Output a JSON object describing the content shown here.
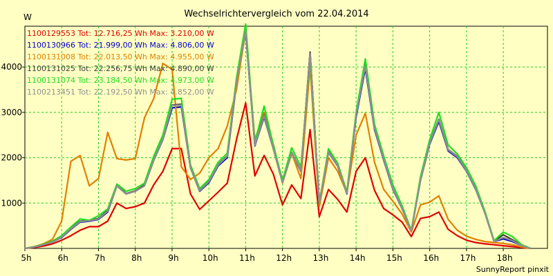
{
  "chart_data": {
    "type": "line",
    "title": "Wechselrichtervergleich vom 22.04.2014",
    "ylabel": "W",
    "xlabel": "",
    "credit": "SunnyReport pinxit",
    "xlim": [
      5,
      19.2
    ],
    "ylim": [
      0,
      4900
    ],
    "grid": true,
    "legend_position": "top-left",
    "x_ticks": [
      {
        "value": 5,
        "label": "5h"
      },
      {
        "value": 6,
        "label": "6h"
      },
      {
        "value": 7,
        "label": "7h"
      },
      {
        "value": 8,
        "label": "8h"
      },
      {
        "value": 9,
        "label": "9h"
      },
      {
        "value": 10,
        "label": "10h"
      },
      {
        "value": 11,
        "label": "11h"
      },
      {
        "value": 12,
        "label": "12h"
      },
      {
        "value": 13,
        "label": "13h"
      },
      {
        "value": 14,
        "label": "14h"
      },
      {
        "value": 15,
        "label": "15h"
      },
      {
        "value": 16,
        "label": "16h"
      },
      {
        "value": 17,
        "label": "17h"
      },
      {
        "value": 18,
        "label": "18h"
      }
    ],
    "y_ticks": [
      {
        "value": 1000,
        "label": "1000"
      },
      {
        "value": 2000,
        "label": "2000"
      },
      {
        "value": 3000,
        "label": "3000"
      },
      {
        "value": 4000,
        "label": "4000"
      }
    ],
    "x": [
      5.0,
      5.25,
      5.5,
      5.75,
      6.0,
      6.25,
      6.5,
      6.75,
      7.0,
      7.25,
      7.5,
      7.75,
      8.0,
      8.25,
      8.5,
      8.75,
      9.0,
      9.25,
      9.5,
      9.75,
      10.0,
      10.25,
      10.5,
      10.75,
      11.0,
      11.25,
      11.5,
      11.75,
      12.0,
      12.25,
      12.5,
      12.75,
      13.0,
      13.25,
      13.5,
      13.75,
      14.0,
      14.25,
      14.5,
      14.75,
      15.0,
      15.25,
      15.5,
      15.75,
      16.0,
      16.25,
      16.5,
      16.75,
      17.0,
      17.25,
      17.5,
      17.75,
      18.0,
      18.25,
      18.5,
      18.75
    ],
    "series": [
      {
        "name": "1100129553 Tot: 12.716,25 Wh Max: 3.210,00 W",
        "color": "#e00000",
        "values": [
          0,
          20,
          50,
          100,
          180,
          280,
          400,
          480,
          480,
          600,
          1000,
          880,
          920,
          1000,
          1400,
          1700,
          2200,
          2200,
          1200,
          860,
          1050,
          1240,
          1440,
          2400,
          3210,
          1600,
          2050,
          1640,
          960,
          1400,
          1100,
          2620,
          700,
          1300,
          1080,
          800,
          1700,
          2000,
          1280,
          880,
          740,
          580,
          260,
          660,
          700,
          800,
          420,
          280,
          180,
          130,
          100,
          80,
          60,
          40,
          20,
          0
        ]
      },
      {
        "name": "1100130966 Tot: 21.999,00 Wh Max: 4.806,00 W",
        "color": "#0000cc",
        "values": [
          0,
          30,
          80,
          140,
          240,
          420,
          580,
          600,
          640,
          800,
          1380,
          1200,
          1260,
          1380,
          1940,
          2400,
          3100,
          3120,
          1780,
          1260,
          1450,
          1820,
          2000,
          3640,
          4760,
          2260,
          2900,
          2200,
          1450,
          2100,
          1700,
          4320,
          1000,
          2120,
          1820,
          1200,
          2900,
          3970,
          2620,
          1950,
          1300,
          880,
          380,
          1500,
          2300,
          2800,
          2150,
          2000,
          1700,
          1300,
          780,
          150,
          210,
          150,
          60,
          0
        ]
      },
      {
        "name": "1100131008 Tot: 22.013,50 Wh Max: 4.955,00 W",
        "color": "#e08000",
        "values": [
          0,
          40,
          100,
          200,
          600,
          1920,
          2050,
          1380,
          1540,
          2560,
          1980,
          1950,
          1980,
          2880,
          3300,
          4080,
          3950,
          1800,
          1520,
          1660,
          2000,
          2200,
          2700,
          3500,
          4800,
          2400,
          3000,
          2300,
          1440,
          2100,
          1540,
          4000,
          920,
          2000,
          1700,
          1220,
          2500,
          2980,
          1900,
          1300,
          1040,
          760,
          360,
          960,
          1020,
          1160,
          640,
          400,
          270,
          200,
          150,
          130,
          110,
          80,
          30,
          0
        ]
      },
      {
        "name": "1100131025 Tot: 22.256,75 Wh Max: 4.890,00 W",
        "color": "#404040",
        "values": [
          0,
          30,
          80,
          150,
          260,
          440,
          600,
          620,
          660,
          840,
          1400,
          1210,
          1270,
          1400,
          1960,
          2420,
          3160,
          3180,
          1800,
          1280,
          1480,
          1850,
          2040,
          3700,
          4820,
          2280,
          2940,
          2220,
          1460,
          2120,
          1720,
          4330,
          1000,
          2140,
          1840,
          1220,
          2950,
          4040,
          2660,
          1980,
          1320,
          900,
          390,
          1520,
          2330,
          2850,
          2180,
          2030,
          1720,
          1320,
          790,
          160,
          300,
          190,
          70,
          0
        ]
      },
      {
        "name": "1100131074 Tot: 23.184,50 Wh Max: 4.973,00 W",
        "color": "#20dd20",
        "values": [
          0,
          35,
          90,
          160,
          280,
          470,
          650,
          620,
          720,
          870,
          1420,
          1260,
          1320,
          1440,
          2030,
          2500,
          3290,
          3310,
          1840,
          1320,
          1520,
          1900,
          2100,
          3760,
          4950,
          2330,
          3140,
          2280,
          1500,
          2220,
          1800,
          4200,
          1000,
          2200,
          1880,
          1250,
          3000,
          4180,
          2740,
          2040,
          1400,
          940,
          400,
          1580,
          2400,
          3000,
          2280,
          2080,
          1780,
          1380,
          820,
          170,
          360,
          260,
          80,
          0
        ]
      },
      {
        "name": "1100213451 Tot: 22.192,50 Wh Max: 4.852,00 W",
        "color": "#909090",
        "values": [
          0,
          30,
          80,
          140,
          250,
          430,
          590,
          610,
          650,
          820,
          1380,
          1200,
          1260,
          1380,
          1950,
          2410,
          3150,
          3160,
          1790,
          1270,
          1470,
          1840,
          2030,
          3680,
          4800,
          2270,
          2930,
          2210,
          1450,
          2110,
          1710,
          4300,
          1000,
          2130,
          1830,
          1210,
          2940,
          4020,
          2650,
          1970,
          1310,
          890,
          380,
          1510,
          2320,
          2840,
          2170,
          2020,
          1710,
          1310,
          780,
          150,
          240,
          170,
          60,
          0
        ]
      }
    ]
  }
}
